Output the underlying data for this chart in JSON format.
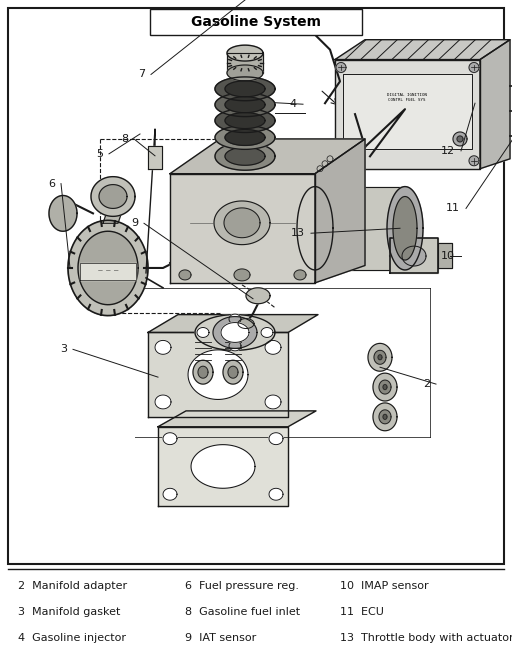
{
  "title": "Gasoline System",
  "background_color": "#ffffff",
  "border_color": "#000000",
  "title_fontsize": 10,
  "legend_entries": [
    {
      "number": "2",
      "text": "Manifold adapter"
    },
    {
      "number": "3",
      "text": "Manifold gasket"
    },
    {
      "number": "4",
      "text": "Gasoline injector"
    },
    {
      "number": "6",
      "text": "Fuel pressure reg."
    },
    {
      "number": "8",
      "text": "Gasoline fuel inlet"
    },
    {
      "number": "9",
      "text": "IAT sensor"
    },
    {
      "number": "10",
      "text": "IMAP sensor"
    },
    {
      "number": "11",
      "text": "ECU"
    },
    {
      "number": "13",
      "text": "Throttle body with actuator"
    }
  ],
  "fig_width": 5.12,
  "fig_height": 6.54,
  "dpi": 100,
  "diagram_bg": "#f5f5f0",
  "line_color": "#1a1a1a",
  "part_color": "#c8c8c0",
  "part_dark": "#888880",
  "part_light": "#e8e8e0"
}
